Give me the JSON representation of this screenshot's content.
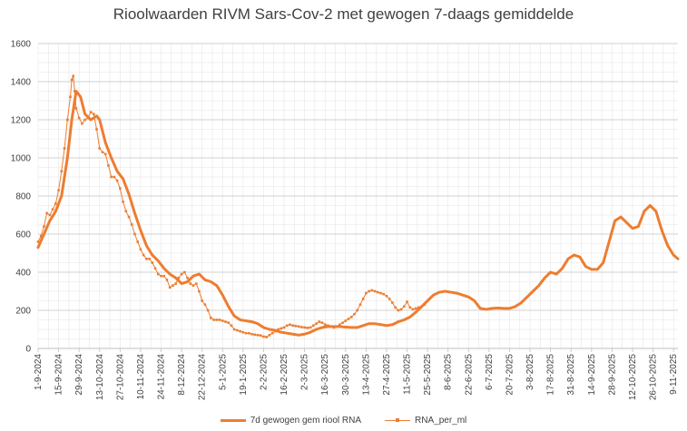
{
  "chart_data": {
    "type": "line",
    "title": "Rioolwaarden RIVM Sars-Cov-2 met gewogen 7-daags gemiddelde",
    "xlabel": "",
    "ylabel": "",
    "ylim": [
      0,
      1600
    ],
    "yticks": [
      0,
      200,
      400,
      600,
      800,
      1000,
      1200,
      1400,
      1600
    ],
    "grid": true,
    "legend_position": "bottom",
    "xlim": [
      "2024-09-01",
      "2025-11-12"
    ],
    "xticks": [
      "1-9-2024",
      "15-9-2024",
      "29-9-2024",
      "13-10-2024",
      "27-10-2024",
      "10-11-2024",
      "24-11-2024",
      "8-12-2024",
      "22-12-2024",
      "5-1-2025",
      "19-1-2025",
      "2-2-2025",
      "16-2-2025",
      "2-3-2025",
      "16-3-2025",
      "30-3-2025",
      "13-4-2025",
      "27-4-2025",
      "11-5-2025",
      "25-5-2025",
      "8-6-2025",
      "22-6-2025",
      "6-7-2025",
      "20-7-2025",
      "3-8-2025",
      "17-8-2025",
      "31-8-2025",
      "14-9-2025",
      "28-9-2025",
      "12-10-2025",
      "26-10-2025",
      "9-11-2025"
    ],
    "series": [
      {
        "name": "7d gewogen gem riool RNA",
        "color": "#ED7D31",
        "style": "thick-line",
        "points": [
          [
            "2024-09-01",
            530
          ],
          [
            "2024-09-05",
            600
          ],
          [
            "2024-09-09",
            670
          ],
          [
            "2024-09-13",
            720
          ],
          [
            "2024-09-17",
            800
          ],
          [
            "2024-09-21",
            1000
          ],
          [
            "2024-09-24",
            1200
          ],
          [
            "2024-09-27",
            1350
          ],
          [
            "2024-09-30",
            1320
          ],
          [
            "2024-10-03",
            1230
          ],
          [
            "2024-10-07",
            1200
          ],
          [
            "2024-10-11",
            1220
          ],
          [
            "2024-10-13",
            1200
          ],
          [
            "2024-10-17",
            1080
          ],
          [
            "2024-10-21",
            1000
          ],
          [
            "2024-10-25",
            930
          ],
          [
            "2024-10-29",
            890
          ],
          [
            "2024-11-02",
            810
          ],
          [
            "2024-11-06",
            710
          ],
          [
            "2024-11-10",
            620
          ],
          [
            "2024-11-14",
            540
          ],
          [
            "2024-11-18",
            490
          ],
          [
            "2024-11-22",
            460
          ],
          [
            "2024-11-26",
            420
          ],
          [
            "2024-11-30",
            390
          ],
          [
            "2024-12-04",
            370
          ],
          [
            "2024-12-08",
            340
          ],
          [
            "2024-12-12",
            350
          ],
          [
            "2024-12-16",
            380
          ],
          [
            "2024-12-20",
            390
          ],
          [
            "2024-12-24",
            360
          ],
          [
            "2024-12-28",
            350
          ],
          [
            "2025-01-01",
            330
          ],
          [
            "2025-01-05",
            280
          ],
          [
            "2025-01-09",
            220
          ],
          [
            "2025-01-13",
            170
          ],
          [
            "2025-01-17",
            150
          ],
          [
            "2025-01-21",
            145
          ],
          [
            "2025-01-25",
            140
          ],
          [
            "2025-01-29",
            130
          ],
          [
            "2025-02-02",
            110
          ],
          [
            "2025-02-06",
            100
          ],
          [
            "2025-02-10",
            95
          ],
          [
            "2025-02-14",
            85
          ],
          [
            "2025-02-18",
            80
          ],
          [
            "2025-02-22",
            75
          ],
          [
            "2025-02-26",
            70
          ],
          [
            "2025-03-02",
            75
          ],
          [
            "2025-03-06",
            85
          ],
          [
            "2025-03-10",
            100
          ],
          [
            "2025-03-14",
            110
          ],
          [
            "2025-03-18",
            115
          ],
          [
            "2025-03-22",
            115
          ],
          [
            "2025-03-26",
            115
          ],
          [
            "2025-03-30",
            112
          ],
          [
            "2025-04-03",
            110
          ],
          [
            "2025-04-07",
            110
          ],
          [
            "2025-04-11",
            120
          ],
          [
            "2025-04-15",
            130
          ],
          [
            "2025-04-19",
            130
          ],
          [
            "2025-04-23",
            125
          ],
          [
            "2025-04-27",
            120
          ],
          [
            "2025-05-01",
            125
          ],
          [
            "2025-05-05",
            140
          ],
          [
            "2025-05-09",
            150
          ],
          [
            "2025-05-13",
            165
          ],
          [
            "2025-05-17",
            190
          ],
          [
            "2025-05-21",
            220
          ],
          [
            "2025-05-25",
            250
          ],
          [
            "2025-05-29",
            280
          ],
          [
            "2025-06-02",
            295
          ],
          [
            "2025-06-06",
            300
          ],
          [
            "2025-06-10",
            295
          ],
          [
            "2025-06-14",
            290
          ],
          [
            "2025-06-18",
            280
          ],
          [
            "2025-06-22",
            270
          ],
          [
            "2025-06-26",
            250
          ],
          [
            "2025-06-30",
            210
          ],
          [
            "2025-07-04",
            205
          ],
          [
            "2025-07-08",
            210
          ],
          [
            "2025-07-12",
            212
          ],
          [
            "2025-07-16",
            210
          ],
          [
            "2025-07-20",
            210
          ],
          [
            "2025-07-24",
            220
          ],
          [
            "2025-07-28",
            240
          ],
          [
            "2025-08-01",
            270
          ],
          [
            "2025-08-05",
            300
          ],
          [
            "2025-08-09",
            330
          ],
          [
            "2025-08-13",
            370
          ],
          [
            "2025-08-17",
            400
          ],
          [
            "2025-08-21",
            390
          ],
          [
            "2025-08-25",
            420
          ],
          [
            "2025-08-29",
            470
          ],
          [
            "2025-09-02",
            490
          ],
          [
            "2025-09-06",
            480
          ],
          [
            "2025-09-10",
            430
          ],
          [
            "2025-09-14",
            415
          ],
          [
            "2025-09-18",
            415
          ],
          [
            "2025-09-22",
            450
          ],
          [
            "2025-09-26",
            560
          ],
          [
            "2025-09-30",
            670
          ],
          [
            "2025-10-04",
            690
          ],
          [
            "2025-10-08",
            660
          ],
          [
            "2025-10-12",
            630
          ],
          [
            "2025-10-16",
            640
          ],
          [
            "2025-10-20",
            720
          ],
          [
            "2025-10-24",
            750
          ],
          [
            "2025-10-28",
            720
          ],
          [
            "2025-11-01",
            620
          ],
          [
            "2025-11-05",
            540
          ],
          [
            "2025-11-09",
            490
          ],
          [
            "2025-11-12",
            470
          ]
        ]
      },
      {
        "name": "RNA_per_ml",
        "color": "#ED7D31",
        "style": "thin-line-markers",
        "points": [
          [
            "2024-09-01",
            560
          ],
          [
            "2024-09-03",
            590
          ],
          [
            "2024-09-05",
            640
          ],
          [
            "2024-09-07",
            710
          ],
          [
            "2024-09-09",
            700
          ],
          [
            "2024-09-11",
            730
          ],
          [
            "2024-09-13",
            760
          ],
          [
            "2024-09-15",
            830
          ],
          [
            "2024-09-17",
            930
          ],
          [
            "2024-09-19",
            1050
          ],
          [
            "2024-09-21",
            1200
          ],
          [
            "2024-09-23",
            1320
          ],
          [
            "2024-09-24",
            1410
          ],
          [
            "2024-09-25",
            1430
          ],
          [
            "2024-09-26",
            1350
          ],
          [
            "2024-09-27",
            1260
          ],
          [
            "2024-09-29",
            1210
          ],
          [
            "2024-10-01",
            1180
          ],
          [
            "2024-10-03",
            1200
          ],
          [
            "2024-10-05",
            1210
          ],
          [
            "2024-10-07",
            1240
          ],
          [
            "2024-10-09",
            1230
          ],
          [
            "2024-10-11",
            1150
          ],
          [
            "2024-10-13",
            1050
          ],
          [
            "2024-10-15",
            1030
          ],
          [
            "2024-10-17",
            1020
          ],
          [
            "2024-10-19",
            960
          ],
          [
            "2024-10-21",
            900
          ],
          [
            "2024-10-23",
            900
          ],
          [
            "2024-10-25",
            880
          ],
          [
            "2024-10-27",
            840
          ],
          [
            "2024-10-29",
            770
          ],
          [
            "2024-10-31",
            720
          ],
          [
            "2024-11-02",
            690
          ],
          [
            "2024-11-04",
            650
          ],
          [
            "2024-11-06",
            600
          ],
          [
            "2024-11-08",
            560
          ],
          [
            "2024-11-10",
            520
          ],
          [
            "2024-11-12",
            490
          ],
          [
            "2024-11-14",
            470
          ],
          [
            "2024-11-16",
            470
          ],
          [
            "2024-11-18",
            450
          ],
          [
            "2024-11-20",
            420
          ],
          [
            "2024-11-22",
            390
          ],
          [
            "2024-11-24",
            380
          ],
          [
            "2024-11-26",
            380
          ],
          [
            "2024-11-28",
            360
          ],
          [
            "2024-11-30",
            320
          ],
          [
            "2024-12-02",
            330
          ],
          [
            "2024-12-04",
            340
          ],
          [
            "2024-12-06",
            370
          ],
          [
            "2024-12-08",
            390
          ],
          [
            "2024-12-10",
            400
          ],
          [
            "2024-12-12",
            370
          ],
          [
            "2024-12-14",
            340
          ],
          [
            "2024-12-16",
            330
          ],
          [
            "2024-12-18",
            340
          ],
          [
            "2024-12-20",
            300
          ],
          [
            "2024-12-22",
            250
          ],
          [
            "2024-12-24",
            230
          ],
          [
            "2024-12-26",
            200
          ],
          [
            "2024-12-28",
            160
          ],
          [
            "2024-12-30",
            150
          ],
          [
            "2025-01-01",
            150
          ],
          [
            "2025-01-03",
            150
          ],
          [
            "2025-01-05",
            145
          ],
          [
            "2025-01-07",
            140
          ],
          [
            "2025-01-09",
            135
          ],
          [
            "2025-01-11",
            120
          ],
          [
            "2025-01-13",
            100
          ],
          [
            "2025-01-15",
            95
          ],
          [
            "2025-01-17",
            90
          ],
          [
            "2025-01-19",
            85
          ],
          [
            "2025-01-21",
            80
          ],
          [
            "2025-01-23",
            80
          ],
          [
            "2025-01-25",
            75
          ],
          [
            "2025-01-27",
            72
          ],
          [
            "2025-01-29",
            70
          ],
          [
            "2025-01-31",
            68
          ],
          [
            "2025-02-02",
            62
          ],
          [
            "2025-02-04",
            60
          ],
          [
            "2025-02-06",
            70
          ],
          [
            "2025-02-08",
            80
          ],
          [
            "2025-02-10",
            90
          ],
          [
            "2025-02-12",
            100
          ],
          [
            "2025-02-14",
            105
          ],
          [
            "2025-02-16",
            110
          ],
          [
            "2025-02-18",
            120
          ],
          [
            "2025-02-20",
            125
          ],
          [
            "2025-02-22",
            120
          ],
          [
            "2025-02-24",
            118
          ],
          [
            "2025-02-26",
            115
          ],
          [
            "2025-02-28",
            112
          ],
          [
            "2025-03-02",
            110
          ],
          [
            "2025-03-04",
            108
          ],
          [
            "2025-03-06",
            110
          ],
          [
            "2025-03-08",
            120
          ],
          [
            "2025-03-10",
            130
          ],
          [
            "2025-03-12",
            140
          ],
          [
            "2025-03-14",
            135
          ],
          [
            "2025-03-16",
            125
          ],
          [
            "2025-03-18",
            120
          ],
          [
            "2025-03-20",
            115
          ],
          [
            "2025-03-22",
            110
          ],
          [
            "2025-03-24",
            115
          ],
          [
            "2025-03-26",
            125
          ],
          [
            "2025-03-28",
            135
          ],
          [
            "2025-03-30",
            145
          ],
          [
            "2025-04-01",
            155
          ],
          [
            "2025-04-03",
            165
          ],
          [
            "2025-04-05",
            180
          ],
          [
            "2025-04-07",
            200
          ],
          [
            "2025-04-09",
            230
          ],
          [
            "2025-04-11",
            260
          ],
          [
            "2025-04-13",
            290
          ],
          [
            "2025-04-15",
            300
          ],
          [
            "2025-04-17",
            305
          ],
          [
            "2025-04-19",
            300
          ],
          [
            "2025-04-21",
            295
          ],
          [
            "2025-04-23",
            290
          ],
          [
            "2025-04-25",
            285
          ],
          [
            "2025-04-27",
            275
          ],
          [
            "2025-04-29",
            260
          ],
          [
            "2025-05-01",
            240
          ],
          [
            "2025-05-03",
            215
          ],
          [
            "2025-05-05",
            200
          ],
          [
            "2025-05-07",
            205
          ],
          [
            "2025-05-09",
            220
          ],
          [
            "2025-05-11",
            245
          ],
          [
            "2025-05-13",
            215
          ],
          [
            "2025-05-15",
            205
          ],
          [
            "2025-05-17",
            210
          ],
          [
            "2025-05-19",
            215
          ],
          [
            "2025-05-21",
            220
          ],
          [
            "2025-05-23",
            230
          ]
        ]
      }
    ]
  }
}
